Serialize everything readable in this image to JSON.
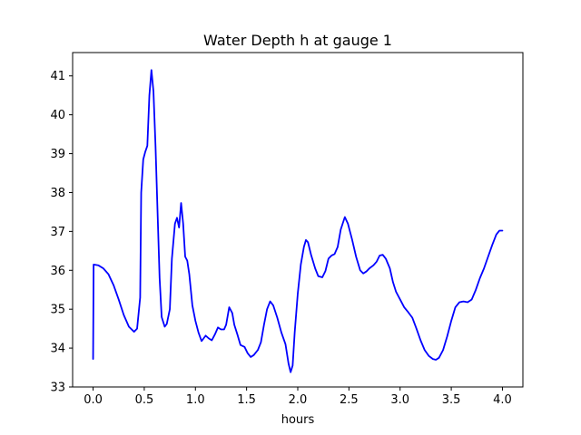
{
  "chart_data": {
    "type": "line",
    "title": "Water Depth h at gauge 1",
    "xlabel": "hours",
    "ylabel": "",
    "xlim": [
      -0.2,
      4.2
    ],
    "ylim": [
      33,
      41.6
    ],
    "x_ticks": [
      0.0,
      0.5,
      1.0,
      1.5,
      2.0,
      2.5,
      3.0,
      3.5,
      4.0
    ],
    "x_tick_labels": [
      "0.0",
      "0.5",
      "1.0",
      "1.5",
      "2.0",
      "2.5",
      "3.0",
      "3.5",
      "4.0"
    ],
    "y_ticks": [
      33,
      34,
      35,
      36,
      37,
      38,
      39,
      40,
      41
    ],
    "y_tick_labels": [
      "33",
      "34",
      "35",
      "36",
      "37",
      "38",
      "39",
      "40",
      "41"
    ],
    "grid": false,
    "legend": "none",
    "series": [
      {
        "color": "#0000ff",
        "points": [
          [
            0.0,
            33.72
          ],
          [
            0.005,
            36.15
          ],
          [
            0.05,
            36.13
          ],
          [
            0.1,
            36.05
          ],
          [
            0.15,
            35.9
          ],
          [
            0.2,
            35.62
          ],
          [
            0.25,
            35.25
          ],
          [
            0.3,
            34.85
          ],
          [
            0.35,
            34.55
          ],
          [
            0.4,
            34.42
          ],
          [
            0.43,
            34.5
          ],
          [
            0.46,
            35.3
          ],
          [
            0.47,
            38.0
          ],
          [
            0.49,
            38.85
          ],
          [
            0.51,
            39.05
          ],
          [
            0.53,
            39.2
          ],
          [
            0.55,
            40.5
          ],
          [
            0.57,
            41.15
          ],
          [
            0.59,
            40.6
          ],
          [
            0.61,
            39.2
          ],
          [
            0.63,
            37.5
          ],
          [
            0.65,
            35.8
          ],
          [
            0.67,
            34.8
          ],
          [
            0.7,
            34.55
          ],
          [
            0.72,
            34.62
          ],
          [
            0.75,
            35.0
          ],
          [
            0.77,
            36.3
          ],
          [
            0.8,
            37.2
          ],
          [
            0.82,
            37.35
          ],
          [
            0.84,
            37.1
          ],
          [
            0.86,
            37.73
          ],
          [
            0.88,
            37.2
          ],
          [
            0.9,
            36.35
          ],
          [
            0.92,
            36.25
          ],
          [
            0.94,
            35.9
          ],
          [
            0.97,
            35.1
          ],
          [
            1.0,
            34.7
          ],
          [
            1.03,
            34.4
          ],
          [
            1.06,
            34.18
          ],
          [
            1.1,
            34.32
          ],
          [
            1.13,
            34.25
          ],
          [
            1.16,
            34.2
          ],
          [
            1.19,
            34.35
          ],
          [
            1.22,
            34.53
          ],
          [
            1.25,
            34.48
          ],
          [
            1.28,
            34.48
          ],
          [
            1.3,
            34.6
          ],
          [
            1.33,
            35.05
          ],
          [
            1.36,
            34.9
          ],
          [
            1.38,
            34.6
          ],
          [
            1.41,
            34.35
          ],
          [
            1.44,
            34.08
          ],
          [
            1.48,
            34.03
          ],
          [
            1.51,
            33.87
          ],
          [
            1.54,
            33.77
          ],
          [
            1.57,
            33.82
          ],
          [
            1.61,
            33.95
          ],
          [
            1.64,
            34.15
          ],
          [
            1.67,
            34.6
          ],
          [
            1.7,
            35.0
          ],
          [
            1.73,
            35.2
          ],
          [
            1.76,
            35.1
          ],
          [
            1.8,
            34.78
          ],
          [
            1.84,
            34.4
          ],
          [
            1.88,
            34.1
          ],
          [
            1.91,
            33.6
          ],
          [
            1.93,
            33.38
          ],
          [
            1.95,
            33.55
          ],
          [
            1.97,
            34.4
          ],
          [
            2.0,
            35.4
          ],
          [
            2.03,
            36.15
          ],
          [
            2.06,
            36.6
          ],
          [
            2.08,
            36.78
          ],
          [
            2.1,
            36.72
          ],
          [
            2.13,
            36.4
          ],
          [
            2.17,
            36.05
          ],
          [
            2.2,
            35.85
          ],
          [
            2.24,
            35.82
          ],
          [
            2.27,
            35.98
          ],
          [
            2.3,
            36.3
          ],
          [
            2.33,
            36.38
          ],
          [
            2.36,
            36.42
          ],
          [
            2.39,
            36.6
          ],
          [
            2.42,
            37.05
          ],
          [
            2.46,
            37.37
          ],
          [
            2.49,
            37.2
          ],
          [
            2.53,
            36.8
          ],
          [
            2.57,
            36.35
          ],
          [
            2.61,
            36.0
          ],
          [
            2.64,
            35.92
          ],
          [
            2.67,
            35.97
          ],
          [
            2.7,
            36.05
          ],
          [
            2.74,
            36.13
          ],
          [
            2.77,
            36.22
          ],
          [
            2.8,
            36.38
          ],
          [
            2.83,
            36.4
          ],
          [
            2.86,
            36.3
          ],
          [
            2.9,
            36.05
          ],
          [
            2.93,
            35.7
          ],
          [
            2.96,
            35.45
          ],
          [
            3.0,
            35.25
          ],
          [
            3.04,
            35.05
          ],
          [
            3.08,
            34.92
          ],
          [
            3.12,
            34.78
          ],
          [
            3.16,
            34.5
          ],
          [
            3.2,
            34.2
          ],
          [
            3.24,
            33.95
          ],
          [
            3.28,
            33.8
          ],
          [
            3.32,
            33.72
          ],
          [
            3.35,
            33.7
          ],
          [
            3.38,
            33.75
          ],
          [
            3.42,
            33.95
          ],
          [
            3.46,
            34.3
          ],
          [
            3.5,
            34.7
          ],
          [
            3.54,
            35.05
          ],
          [
            3.58,
            35.18
          ],
          [
            3.62,
            35.2
          ],
          [
            3.66,
            35.18
          ],
          [
            3.7,
            35.25
          ],
          [
            3.74,
            35.5
          ],
          [
            3.78,
            35.8
          ],
          [
            3.82,
            36.05
          ],
          [
            3.86,
            36.35
          ],
          [
            3.9,
            36.65
          ],
          [
            3.94,
            36.92
          ],
          [
            3.97,
            37.02
          ],
          [
            4.0,
            37.02
          ]
        ]
      }
    ]
  }
}
